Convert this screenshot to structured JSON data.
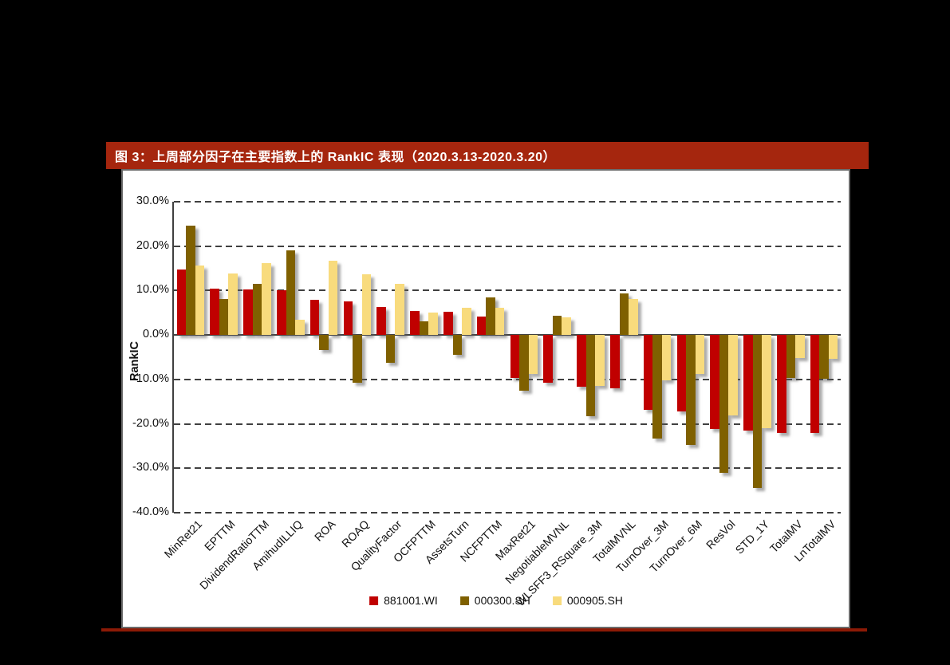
{
  "title_bar": {
    "text": "图 3：上周部分因子在主要指数上的 RankIC 表现（2020.3.13-2020.3.20）"
  },
  "colors": {
    "title_bar_bg": "#A5260E",
    "bottom_rule": "#8C1A06",
    "page_bg": "#000000",
    "panel_bg": "#FFFFFF",
    "series_red": "#C00000",
    "series_olive": "#7F6000",
    "series_light": "#F8DB7D"
  },
  "chart_data": {
    "type": "bar",
    "title": "",
    "xlabel": "",
    "ylabel": "RankIC",
    "ylim": [
      -40,
      30
    ],
    "yticks": [
      30,
      20,
      10,
      0,
      -10,
      -20,
      -30,
      -40
    ],
    "ytick_labels": [
      "30.0%",
      "20.0%",
      "10.0%",
      "0.0%",
      "-10.0%",
      "-20.0%",
      "-30.0%",
      "-40.0%"
    ],
    "grid": "horizontal-dashed",
    "legend_position": "bottom",
    "categories": [
      "MinRet21",
      "EPTTM",
      "DividendRatioTTM",
      "AmihudILLIQ",
      "ROA",
      "ROAQ",
      "QualityFactor",
      "OCFPTTM",
      "AssetsTurn",
      "NCFPTTM",
      "MaxRet21",
      "NegotiableMVNL",
      "WLSFF3_RSquare_3M",
      "TotalMVNL",
      "TurnOver_3M",
      "TurnOver_6M",
      "ResVol",
      "STD_1Y",
      "TotalMV",
      "LnTotalMV"
    ],
    "series": [
      {
        "name": "881001.WI",
        "color": "#C00000",
        "values": [
          14.7,
          10.4,
          10.2,
          10.0,
          8.0,
          7.6,
          6.3,
          5.5,
          5.3,
          4.1,
          -9.7,
          -10.7,
          -11.6,
          -12.1,
          -16.8,
          -17.3,
          -21.2,
          -21.6,
          -22.0,
          -22.0
        ]
      },
      {
        "name": "000300.SH",
        "color": "#7F6000",
        "values": [
          24.7,
          8.2,
          11.6,
          19.0,
          -3.4,
          -10.8,
          -6.3,
          3.1,
          -4.5,
          8.4,
          -12.6,
          4.4,
          -18.3,
          9.3,
          -23.4,
          -24.8,
          -31.0,
          -34.4,
          -9.6,
          -9.9
        ]
      },
      {
        "name": "000905.SH",
        "color": "#F8DB7D",
        "values": [
          15.6,
          13.8,
          16.2,
          3.5,
          16.8,
          13.7,
          11.5,
          5.0,
          6.1,
          6.1,
          -8.7,
          3.9,
          -11.5,
          8.1,
          -10.3,
          -8.7,
          -18.2,
          -21.0,
          -5.2,
          -5.4
        ]
      }
    ]
  }
}
